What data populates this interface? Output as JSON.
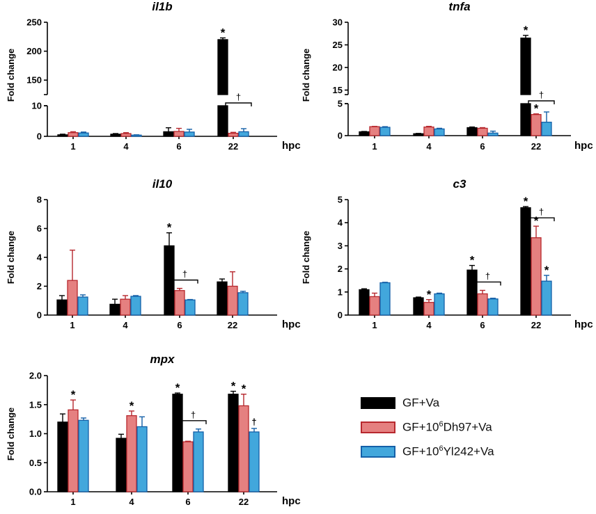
{
  "figure": {
    "ylabel": "Fold change",
    "xlabel": "hpc",
    "star": "*",
    "dagger": "†"
  },
  "colors": {
    "series": [
      {
        "fill": "#000000",
        "stroke": "#000000"
      },
      {
        "fill": "#e58080",
        "stroke": "#b7282e"
      },
      {
        "fill": "#42a7dc",
        "stroke": "#1460a8"
      }
    ]
  },
  "legend": {
    "items": [
      {
        "pre": "GF+Va",
        "sup": "",
        "post": ""
      },
      {
        "pre": "GF+10",
        "sup": "6",
        "post": "Dh97+Va"
      },
      {
        "pre": "GF+10",
        "sup": "6",
        "post": "Yl242+Va"
      }
    ]
  },
  "chart_data": [
    {
      "type": "bar",
      "title": "il1b",
      "xlabel": "hpc",
      "ylabel": "Fold change",
      "categories": [
        "1",
        "4",
        "6",
        "22"
      ],
      "series": [
        {
          "name": "GF+Va",
          "values": [
            0.5,
            0.7,
            1.5,
            220
          ],
          "errors": [
            0.2,
            0.2,
            1.3,
            3
          ]
        },
        {
          "name": "GF+10^6Dh97+Va",
          "values": [
            1.2,
            0.9,
            1.6,
            1.0
          ],
          "errors": [
            0.3,
            0.3,
            1.0,
            0.3
          ]
        },
        {
          "name": "GF+10^6Yl242+Va",
          "values": [
            1.1,
            0.4,
            1.4,
            1.5
          ],
          "errors": [
            0.3,
            0.1,
            0.9,
            1.0
          ]
        }
      ],
      "broken_axis": {
        "lower": [
          0,
          10
        ],
        "upper": [
          125,
          250
        ],
        "lower_ticks": [
          0,
          10
        ],
        "upper_ticks": [
          150,
          200,
          250
        ]
      },
      "annotations": [
        {
          "category": 3,
          "series": 0,
          "mark": "*"
        },
        {
          "bracket": [
            3,
            1,
            3,
            2
          ],
          "mark": "†"
        }
      ]
    },
    {
      "type": "bar",
      "title": "tnfa",
      "xlabel": "hpc",
      "ylabel": "Fold change",
      "categories": [
        "1",
        "4",
        "6",
        "22"
      ],
      "series": [
        {
          "name": "GF+Va",
          "values": [
            0.6,
            0.3,
            1.25,
            26.5
          ],
          "errors": [
            0.05,
            0.05,
            0.1,
            0.6
          ]
        },
        {
          "name": "GF+10^6Dh97+Va",
          "values": [
            1.4,
            1.35,
            1.15,
            3.3
          ],
          "errors": [
            0.05,
            0.1,
            0.1,
            0.1
          ]
        },
        {
          "name": "GF+10^6Yl242+Va",
          "values": [
            1.3,
            1.05,
            0.4,
            2.1
          ],
          "errors": [
            0.1,
            0.1,
            0.3,
            1.6
          ]
        }
      ],
      "broken_axis": {
        "lower": [
          0,
          5
        ],
        "upper": [
          14,
          30
        ],
        "lower_ticks": [
          0,
          5
        ],
        "upper_ticks": [
          15,
          20,
          25,
          30
        ]
      },
      "annotations": [
        {
          "category": 3,
          "series": 0,
          "mark": "*"
        },
        {
          "category": 3,
          "series": 1,
          "mark": "*"
        },
        {
          "bracket": [
            3,
            1,
            3,
            2
          ],
          "mark": "†"
        }
      ]
    },
    {
      "type": "bar",
      "title": "il10",
      "xlabel": "hpc",
      "ylabel": "Fold change",
      "categories": [
        "1",
        "4",
        "6",
        "22"
      ],
      "ylim": [
        0,
        8
      ],
      "yticks": [
        0,
        2,
        4,
        6,
        8
      ],
      "series": [
        {
          "name": "GF+Va",
          "values": [
            1.05,
            0.75,
            4.8,
            2.3
          ],
          "errors": [
            0.3,
            0.35,
            0.9,
            0.2
          ]
        },
        {
          "name": "GF+10^6Dh97+Va",
          "values": [
            2.4,
            1.1,
            1.7,
            2.0
          ],
          "errors": [
            2.1,
            0.25,
            0.15,
            1.0
          ]
        },
        {
          "name": "GF+10^6Yl242+Va",
          "values": [
            1.25,
            1.3,
            1.05,
            1.55
          ],
          "errors": [
            0.15,
            0.05,
            0.03,
            0.1
          ]
        }
      ],
      "annotations": [
        {
          "category": 2,
          "series": 0,
          "mark": "*"
        },
        {
          "bracket": [
            2,
            1,
            2,
            2
          ],
          "mark": "†"
        }
      ]
    },
    {
      "type": "bar",
      "title": "c3",
      "xlabel": "hpc",
      "ylabel": "Fold change",
      "categories": [
        "1",
        "4",
        "6",
        "22"
      ],
      "ylim": [
        0,
        5
      ],
      "yticks": [
        0,
        1,
        2,
        3,
        4,
        5
      ],
      "series": [
        {
          "name": "GF+Va",
          "values": [
            1.1,
            0.75,
            1.95,
            4.65
          ],
          "errors": [
            0.04,
            0.03,
            0.2,
            0.05
          ]
        },
        {
          "name": "GF+10^6Dh97+Va",
          "values": [
            0.8,
            0.55,
            0.92,
            3.35
          ],
          "errors": [
            0.15,
            0.12,
            0.15,
            0.5
          ]
        },
        {
          "name": "GF+10^6Yl242+Va",
          "values": [
            1.4,
            0.92,
            0.7,
            1.47
          ],
          "errors": [
            0.02,
            0.03,
            0.03,
            0.25
          ]
        }
      ],
      "annotations": [
        {
          "category": 1,
          "series": 1,
          "mark": "*"
        },
        {
          "category": 2,
          "series": 0,
          "mark": "*"
        },
        {
          "bracket": [
            2,
            1,
            2,
            2
          ],
          "mark": "†"
        },
        {
          "category": 3,
          "series": 0,
          "mark": "*"
        },
        {
          "category": 3,
          "series": 1,
          "mark": "*"
        },
        {
          "category": 3,
          "series": 2,
          "mark": "*"
        },
        {
          "bracket": [
            3,
            1,
            3,
            2
          ],
          "mark": "†"
        }
      ]
    },
    {
      "type": "bar",
      "title": "mpx",
      "xlabel": "hpc",
      "ylabel": "Fold change",
      "categories": [
        "1",
        "4",
        "6",
        "22"
      ],
      "ylim": [
        0,
        2.0
      ],
      "yticks": [
        0,
        0.5,
        1.0,
        1.5,
        2.0
      ],
      "ytick_labels": [
        "0.0",
        "0.5",
        "1.0",
        "1.5",
        "2.0"
      ],
      "series": [
        {
          "name": "GF+Va",
          "values": [
            1.2,
            0.92,
            1.68,
            1.68
          ],
          "errors": [
            0.14,
            0.07,
            0.02,
            0.05
          ]
        },
        {
          "name": "GF+10^6Dh97+Va",
          "values": [
            1.41,
            1.31,
            0.86,
            1.48
          ],
          "errors": [
            0.17,
            0.08,
            0.01,
            0.2
          ]
        },
        {
          "name": "GF+10^6Yl242+Va",
          "values": [
            1.23,
            1.12,
            1.03,
            1.03
          ],
          "errors": [
            0.04,
            0.17,
            0.05,
            0.06
          ]
        }
      ],
      "annotations": [
        {
          "category": 0,
          "series": 1,
          "mark": "*"
        },
        {
          "category": 1,
          "series": 1,
          "mark": "*"
        },
        {
          "category": 2,
          "series": 0,
          "mark": "*"
        },
        {
          "bracket": [
            2,
            1,
            2,
            2
          ],
          "mark": "†"
        },
        {
          "category": 3,
          "series": 0,
          "mark": "*"
        },
        {
          "category": 3,
          "series": 1,
          "mark": "*"
        },
        {
          "category": 3,
          "series": 2,
          "mark": "†"
        }
      ]
    }
  ]
}
